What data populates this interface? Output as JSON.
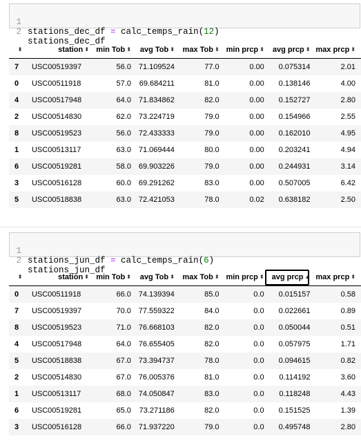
{
  "cell1": {
    "line_numbers": [
      "1",
      "2"
    ],
    "code_line1_prefix": "stations_dec_df ",
    "code_line1_op": "=",
    "code_line1_call": " calc_temps_rain(",
    "code_line1_arg": "12",
    "code_line1_close": ")",
    "code_line2": "stations_dec_df"
  },
  "cell2": {
    "line_numbers": [
      "1",
      "2"
    ],
    "code_line1_prefix": "stations_jun_df ",
    "code_line1_op": "=",
    "code_line1_call": " calc_temps_rain(",
    "code_line1_arg": "6",
    "code_line1_close": ")",
    "code_line2": "stations_jun_df"
  },
  "columns": [
    "station",
    "min Tob",
    "avg Tob",
    "max Tob",
    "min prcp",
    "avg prcp",
    "max prcp"
  ],
  "sort_icons": {
    "unsorted": "sort-both-icon",
    "ascending": "sort-ascending-icon"
  },
  "table_dec": {
    "rows": [
      [
        "7",
        "USC00519397",
        "56.0",
        "71.109524",
        "77.0",
        "0.00",
        "0.075314",
        "2.01"
      ],
      [
        "0",
        "USC00511918",
        "57.0",
        "69.684211",
        "81.0",
        "0.00",
        "0.138146",
        "4.00"
      ],
      [
        "4",
        "USC00517948",
        "64.0",
        "71.834862",
        "82.0",
        "0.00",
        "0.152727",
        "2.80"
      ],
      [
        "2",
        "USC00514830",
        "62.0",
        "73.224719",
        "79.0",
        "0.00",
        "0.154966",
        "2.55"
      ],
      [
        "8",
        "USC00519523",
        "56.0",
        "72.433333",
        "79.0",
        "0.00",
        "0.162010",
        "4.95"
      ],
      [
        "1",
        "USC00513117",
        "63.0",
        "71.069444",
        "80.0",
        "0.00",
        "0.203241",
        "4.94"
      ],
      [
        "6",
        "USC00519281",
        "58.0",
        "69.903226",
        "79.0",
        "0.00",
        "0.244931",
        "3.14"
      ],
      [
        "3",
        "USC00516128",
        "60.0",
        "69.291262",
        "83.0",
        "0.00",
        "0.507005",
        "6.42"
      ],
      [
        "5",
        "USC00518838",
        "63.0",
        "72.421053",
        "78.0",
        "0.02",
        "0.638182",
        "2.50"
      ]
    ]
  },
  "table_jun": {
    "active_sort_column": "avg prcp",
    "rows": [
      [
        "0",
        "USC00511918",
        "66.0",
        "74.139394",
        "85.0",
        "0.0",
        "0.015157",
        "0.58"
      ],
      [
        "7",
        "USC00519397",
        "70.0",
        "77.559322",
        "84.0",
        "0.0",
        "0.022661",
        "0.89"
      ],
      [
        "8",
        "USC00519523",
        "71.0",
        "76.668103",
        "82.0",
        "0.0",
        "0.050044",
        "0.51"
      ],
      [
        "4",
        "USC00517948",
        "64.0",
        "76.655405",
        "82.0",
        "0.0",
        "0.057975",
        "1.71"
      ],
      [
        "5",
        "USC00518838",
        "67.0",
        "73.394737",
        "78.0",
        "0.0",
        "0.094615",
        "0.82"
      ],
      [
        "2",
        "USC00514830",
        "67.0",
        "76.005376",
        "81.0",
        "0.0",
        "0.114192",
        "3.60"
      ],
      [
        "1",
        "USC00513117",
        "68.0",
        "74.050847",
        "83.0",
        "0.0",
        "0.118248",
        "4.43"
      ],
      [
        "6",
        "USC00519281",
        "65.0",
        "73.271186",
        "82.0",
        "0.0",
        "0.151525",
        "1.39"
      ],
      [
        "3",
        "USC00516128",
        "66.0",
        "71.937220",
        "79.0",
        "0.0",
        "0.495748",
        "2.80"
      ]
    ]
  }
}
